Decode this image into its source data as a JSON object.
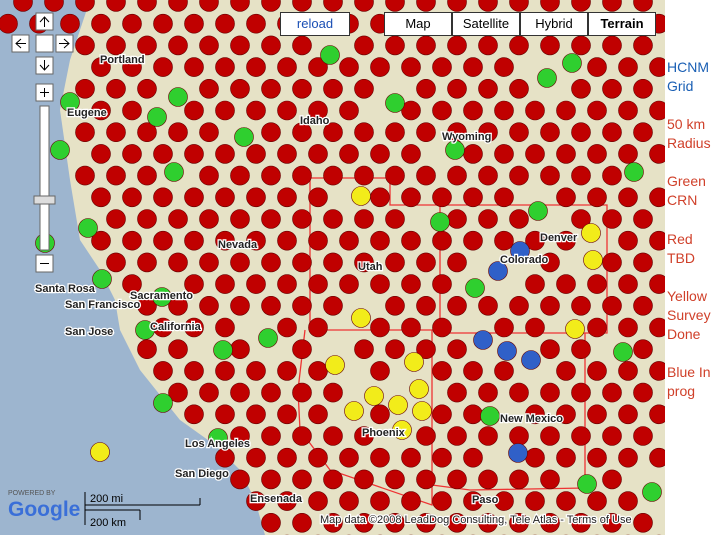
{
  "toolbar": {
    "reload": "reload",
    "map_types": [
      "Map",
      "Satellite",
      "Hybrid",
      "Terrain"
    ]
  },
  "legend": [
    "HCNM Grid",
    "50 km Radius",
    "Green CRN",
    "Red TBD",
    "Yellow Survey Done",
    "Blue In prog"
  ],
  "map_labels": [
    "Portland",
    "Eugene",
    "Idaho",
    "Wyoming",
    "Nevada",
    "Utah",
    "Colorado",
    "Denver",
    "Santa Rosa",
    "San Francisco",
    "San Jose",
    "Sacramento",
    "California",
    "Los Angeles",
    "San Diego",
    "Ensenada",
    "Phoenix",
    "New Mexico",
    "Paso"
  ],
  "scale": {
    "miles": "200 mi",
    "km": "200 km"
  },
  "branding": {
    "powered_by": "POWERED BY",
    "logo": "Google"
  },
  "attribution": "Map data ©2008 LeadDog Consulting, Tele Atlas - Terms of Use"
}
